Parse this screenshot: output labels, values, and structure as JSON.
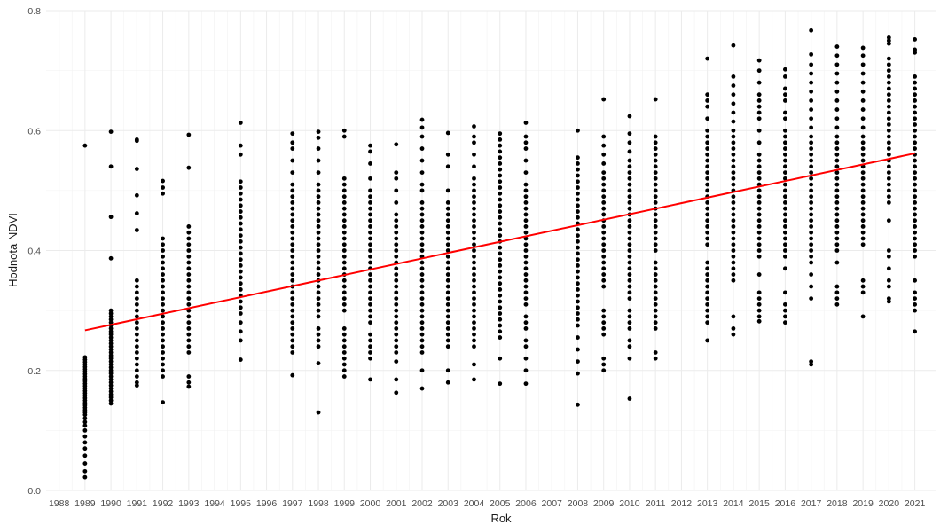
{
  "chart_data": {
    "type": "scatter",
    "title": "",
    "xlabel": "Rok",
    "ylabel": "Hodnota NDVI",
    "xlim": [
      1987.5,
      2021.8
    ],
    "ylim": [
      0.0,
      0.8
    ],
    "x_ticks": [
      1988,
      1989,
      1990,
      1991,
      1992,
      1993,
      1994,
      1995,
      1996,
      1997,
      1998,
      1999,
      2000,
      2001,
      2002,
      2003,
      2004,
      2005,
      2006,
      2007,
      2008,
      2009,
      2010,
      2011,
      2012,
      2013,
      2014,
      2015,
      2016,
      2017,
      2018,
      2019,
      2020,
      2021
    ],
    "y_ticks": [
      0.0,
      0.2,
      0.4,
      0.6,
      0.8
    ],
    "y_tick_labels": [
      "0.0",
      "0.2",
      "0.4",
      "0.6",
      "0.8"
    ],
    "grid": true,
    "legend": "none",
    "point_color": "#000000",
    "trend_color": "#ff0000",
    "trend_line": {
      "x": [
        1989,
        2021
      ],
      "y": [
        0.267,
        0.562
      ]
    },
    "series": [
      {
        "x": 1989,
        "values": [
          0.575,
          0.222,
          0.218,
          0.214,
          0.21,
          0.206,
          0.202,
          0.198,
          0.194,
          0.19,
          0.186,
          0.182,
          0.178,
          0.174,
          0.17,
          0.166,
          0.162,
          0.158,
          0.154,
          0.15,
          0.146,
          0.142,
          0.138,
          0.134,
          0.13,
          0.126,
          0.12,
          0.114,
          0.108,
          0.1,
          0.09,
          0.08,
          0.07,
          0.058,
          0.045,
          0.032,
          0.022
        ]
      },
      {
        "x": 1990,
        "values": [
          0.598,
          0.54,
          0.456,
          0.387,
          0.3,
          0.295,
          0.29,
          0.285,
          0.28,
          0.275,
          0.27,
          0.265,
          0.26,
          0.255,
          0.25,
          0.245,
          0.24,
          0.235,
          0.23,
          0.225,
          0.22,
          0.215,
          0.21,
          0.205,
          0.2,
          0.195,
          0.19,
          0.185,
          0.18,
          0.175,
          0.17,
          0.165,
          0.16,
          0.155,
          0.15,
          0.145
        ]
      },
      {
        "x": 1991,
        "values": [
          0.585,
          0.583,
          0.536,
          0.492,
          0.462,
          0.434,
          0.35,
          0.34,
          0.33,
          0.32,
          0.31,
          0.3,
          0.29,
          0.28,
          0.27,
          0.26,
          0.25,
          0.24,
          0.23,
          0.22,
          0.21,
          0.2,
          0.19,
          0.18,
          0.175
        ]
      },
      {
        "x": 1992,
        "values": [
          0.516,
          0.505,
          0.495,
          0.42,
          0.41,
          0.4,
          0.39,
          0.38,
          0.37,
          0.36,
          0.35,
          0.34,
          0.33,
          0.32,
          0.31,
          0.3,
          0.29,
          0.28,
          0.27,
          0.26,
          0.25,
          0.24,
          0.23,
          0.22,
          0.21,
          0.2,
          0.19,
          0.147
        ]
      },
      {
        "x": 1993,
        "values": [
          0.593,
          0.538,
          0.44,
          0.43,
          0.42,
          0.41,
          0.4,
          0.39,
          0.38,
          0.37,
          0.36,
          0.35,
          0.34,
          0.33,
          0.32,
          0.31,
          0.3,
          0.29,
          0.28,
          0.27,
          0.26,
          0.25,
          0.24,
          0.23,
          0.19,
          0.18,
          0.173
        ]
      },
      {
        "x": 1995,
        "values": [
          0.613,
          0.575,
          0.56,
          0.515,
          0.505,
          0.495,
          0.485,
          0.475,
          0.465,
          0.455,
          0.445,
          0.435,
          0.425,
          0.415,
          0.405,
          0.395,
          0.385,
          0.375,
          0.365,
          0.355,
          0.345,
          0.335,
          0.325,
          0.315,
          0.305,
          0.295,
          0.28,
          0.265,
          0.25,
          0.218
        ]
      },
      {
        "x": 1997,
        "values": [
          0.595,
          0.58,
          0.57,
          0.55,
          0.53,
          0.51,
          0.5,
          0.49,
          0.48,
          0.47,
          0.46,
          0.45,
          0.44,
          0.43,
          0.42,
          0.41,
          0.4,
          0.39,
          0.38,
          0.37,
          0.36,
          0.35,
          0.34,
          0.33,
          0.32,
          0.31,
          0.3,
          0.29,
          0.28,
          0.27,
          0.26,
          0.25,
          0.24,
          0.23,
          0.192
        ]
      },
      {
        "x": 1998,
        "values": [
          0.598,
          0.588,
          0.57,
          0.55,
          0.53,
          0.51,
          0.5,
          0.49,
          0.48,
          0.47,
          0.46,
          0.45,
          0.44,
          0.43,
          0.42,
          0.41,
          0.4,
          0.39,
          0.38,
          0.37,
          0.36,
          0.35,
          0.34,
          0.33,
          0.32,
          0.31,
          0.3,
          0.29,
          0.27,
          0.26,
          0.25,
          0.24,
          0.212,
          0.13
        ]
      },
      {
        "x": 1999,
        "values": [
          0.6,
          0.59,
          0.52,
          0.51,
          0.5,
          0.49,
          0.48,
          0.47,
          0.46,
          0.45,
          0.44,
          0.43,
          0.42,
          0.41,
          0.4,
          0.39,
          0.38,
          0.37,
          0.36,
          0.35,
          0.34,
          0.33,
          0.32,
          0.31,
          0.3,
          0.27,
          0.26,
          0.25,
          0.24,
          0.23,
          0.22,
          0.21,
          0.2,
          0.19
        ]
      },
      {
        "x": 2000,
        "values": [
          0.575,
          0.565,
          0.545,
          0.52,
          0.5,
          0.49,
          0.48,
          0.47,
          0.46,
          0.45,
          0.44,
          0.43,
          0.42,
          0.41,
          0.4,
          0.39,
          0.38,
          0.37,
          0.36,
          0.35,
          0.34,
          0.33,
          0.32,
          0.31,
          0.3,
          0.29,
          0.28,
          0.26,
          0.25,
          0.24,
          0.23,
          0.22,
          0.185
        ]
      },
      {
        "x": 2001,
        "values": [
          0.577,
          0.53,
          0.52,
          0.5,
          0.48,
          0.46,
          0.45,
          0.44,
          0.43,
          0.42,
          0.41,
          0.4,
          0.39,
          0.38,
          0.37,
          0.36,
          0.35,
          0.34,
          0.33,
          0.32,
          0.31,
          0.3,
          0.29,
          0.28,
          0.27,
          0.26,
          0.25,
          0.24,
          0.23,
          0.215,
          0.185,
          0.163
        ]
      },
      {
        "x": 2002,
        "values": [
          0.618,
          0.605,
          0.59,
          0.57,
          0.55,
          0.53,
          0.51,
          0.5,
          0.48,
          0.47,
          0.46,
          0.45,
          0.44,
          0.43,
          0.42,
          0.41,
          0.4,
          0.39,
          0.38,
          0.37,
          0.36,
          0.35,
          0.34,
          0.33,
          0.32,
          0.31,
          0.3,
          0.29,
          0.28,
          0.27,
          0.26,
          0.25,
          0.24,
          0.23,
          0.2,
          0.17
        ]
      },
      {
        "x": 2003,
        "values": [
          0.596,
          0.56,
          0.54,
          0.5,
          0.48,
          0.47,
          0.46,
          0.45,
          0.44,
          0.43,
          0.42,
          0.41,
          0.4,
          0.39,
          0.38,
          0.37,
          0.36,
          0.35,
          0.34,
          0.33,
          0.32,
          0.31,
          0.3,
          0.29,
          0.28,
          0.27,
          0.26,
          0.25,
          0.24,
          0.2,
          0.18
        ]
      },
      {
        "x": 2004,
        "values": [
          0.607,
          0.59,
          0.58,
          0.56,
          0.54,
          0.52,
          0.51,
          0.5,
          0.49,
          0.48,
          0.47,
          0.46,
          0.45,
          0.44,
          0.43,
          0.42,
          0.41,
          0.4,
          0.39,
          0.38,
          0.37,
          0.36,
          0.35,
          0.34,
          0.33,
          0.32,
          0.31,
          0.3,
          0.29,
          0.28,
          0.27,
          0.26,
          0.25,
          0.24,
          0.21,
          0.185
        ]
      },
      {
        "x": 2005,
        "values": [
          0.595,
          0.585,
          0.575,
          0.565,
          0.555,
          0.545,
          0.535,
          0.525,
          0.515,
          0.505,
          0.495,
          0.485,
          0.475,
          0.465,
          0.455,
          0.445,
          0.435,
          0.425,
          0.415,
          0.405,
          0.395,
          0.385,
          0.375,
          0.365,
          0.355,
          0.345,
          0.335,
          0.325,
          0.315,
          0.305,
          0.295,
          0.285,
          0.275,
          0.265,
          0.255,
          0.22,
          0.178
        ]
      },
      {
        "x": 2006,
        "values": [
          0.613,
          0.59,
          0.58,
          0.57,
          0.55,
          0.53,
          0.51,
          0.5,
          0.49,
          0.48,
          0.47,
          0.46,
          0.45,
          0.44,
          0.43,
          0.42,
          0.41,
          0.4,
          0.39,
          0.38,
          0.37,
          0.36,
          0.35,
          0.34,
          0.33,
          0.32,
          0.31,
          0.29,
          0.28,
          0.27,
          0.25,
          0.24,
          0.22,
          0.2,
          0.178
        ]
      },
      {
        "x": 2008,
        "values": [
          0.6,
          0.555,
          0.545,
          0.535,
          0.525,
          0.515,
          0.505,
          0.495,
          0.485,
          0.475,
          0.465,
          0.455,
          0.445,
          0.435,
          0.425,
          0.415,
          0.405,
          0.395,
          0.385,
          0.375,
          0.365,
          0.355,
          0.345,
          0.335,
          0.325,
          0.315,
          0.305,
          0.295,
          0.285,
          0.275,
          0.255,
          0.235,
          0.215,
          0.195,
          0.143
        ]
      },
      {
        "x": 2009,
        "values": [
          0.652,
          0.59,
          0.575,
          0.56,
          0.545,
          0.53,
          0.52,
          0.51,
          0.5,
          0.49,
          0.48,
          0.47,
          0.46,
          0.45,
          0.44,
          0.43,
          0.42,
          0.41,
          0.4,
          0.39,
          0.38,
          0.37,
          0.36,
          0.35,
          0.34,
          0.3,
          0.29,
          0.28,
          0.27,
          0.26,
          0.22,
          0.21,
          0.2
        ]
      },
      {
        "x": 2010,
        "values": [
          0.624,
          0.595,
          0.58,
          0.565,
          0.55,
          0.54,
          0.53,
          0.52,
          0.51,
          0.5,
          0.49,
          0.48,
          0.47,
          0.46,
          0.45,
          0.44,
          0.43,
          0.42,
          0.41,
          0.4,
          0.39,
          0.38,
          0.37,
          0.36,
          0.35,
          0.34,
          0.33,
          0.32,
          0.3,
          0.29,
          0.28,
          0.27,
          0.25,
          0.24,
          0.22,
          0.153
        ]
      },
      {
        "x": 2011,
        "values": [
          0.652,
          0.59,
          0.58,
          0.57,
          0.56,
          0.55,
          0.54,
          0.53,
          0.52,
          0.51,
          0.5,
          0.49,
          0.48,
          0.47,
          0.46,
          0.45,
          0.44,
          0.43,
          0.42,
          0.41,
          0.4,
          0.38,
          0.37,
          0.36,
          0.35,
          0.34,
          0.33,
          0.32,
          0.31,
          0.3,
          0.29,
          0.28,
          0.27,
          0.23,
          0.22
        ]
      },
      {
        "x": 2013,
        "values": [
          0.72,
          0.66,
          0.65,
          0.64,
          0.62,
          0.6,
          0.59,
          0.58,
          0.57,
          0.56,
          0.55,
          0.54,
          0.53,
          0.52,
          0.51,
          0.5,
          0.49,
          0.48,
          0.47,
          0.46,
          0.45,
          0.44,
          0.43,
          0.42,
          0.41,
          0.38,
          0.37,
          0.36,
          0.35,
          0.34,
          0.33,
          0.32,
          0.31,
          0.3,
          0.29,
          0.28,
          0.25
        ]
      },
      {
        "x": 2014,
        "values": [
          0.742,
          0.69,
          0.675,
          0.66,
          0.645,
          0.63,
          0.615,
          0.6,
          0.59,
          0.58,
          0.57,
          0.56,
          0.55,
          0.54,
          0.53,
          0.52,
          0.51,
          0.5,
          0.49,
          0.48,
          0.47,
          0.46,
          0.45,
          0.44,
          0.43,
          0.42,
          0.41,
          0.4,
          0.39,
          0.38,
          0.37,
          0.36,
          0.35,
          0.29,
          0.27,
          0.26
        ]
      },
      {
        "x": 2015,
        "values": [
          0.717,
          0.7,
          0.68,
          0.66,
          0.65,
          0.64,
          0.63,
          0.62,
          0.6,
          0.58,
          0.56,
          0.55,
          0.54,
          0.53,
          0.52,
          0.51,
          0.5,
          0.49,
          0.48,
          0.47,
          0.46,
          0.45,
          0.44,
          0.43,
          0.42,
          0.41,
          0.4,
          0.39,
          0.36,
          0.33,
          0.32,
          0.31,
          0.3,
          0.29,
          0.282
        ]
      },
      {
        "x": 2016,
        "values": [
          0.702,
          0.69,
          0.67,
          0.66,
          0.65,
          0.63,
          0.62,
          0.6,
          0.59,
          0.58,
          0.57,
          0.56,
          0.55,
          0.54,
          0.53,
          0.52,
          0.51,
          0.5,
          0.49,
          0.48,
          0.47,
          0.46,
          0.45,
          0.44,
          0.43,
          0.42,
          0.41,
          0.4,
          0.39,
          0.37,
          0.33,
          0.31,
          0.3,
          0.29,
          0.28
        ]
      },
      {
        "x": 2017,
        "values": [
          0.767,
          0.727,
          0.71,
          0.695,
          0.68,
          0.665,
          0.65,
          0.635,
          0.62,
          0.605,
          0.59,
          0.58,
          0.57,
          0.56,
          0.55,
          0.54,
          0.53,
          0.52,
          0.51,
          0.5,
          0.49,
          0.48,
          0.47,
          0.46,
          0.45,
          0.44,
          0.43,
          0.42,
          0.41,
          0.4,
          0.39,
          0.38,
          0.36,
          0.34,
          0.32,
          0.215,
          0.21
        ]
      },
      {
        "x": 2018,
        "values": [
          0.74,
          0.725,
          0.71,
          0.695,
          0.68,
          0.665,
          0.65,
          0.635,
          0.62,
          0.605,
          0.59,
          0.58,
          0.57,
          0.56,
          0.55,
          0.54,
          0.53,
          0.52,
          0.51,
          0.5,
          0.49,
          0.48,
          0.47,
          0.46,
          0.45,
          0.44,
          0.43,
          0.42,
          0.41,
          0.4,
          0.38,
          0.34,
          0.33,
          0.32,
          0.31
        ]
      },
      {
        "x": 2019,
        "values": [
          0.738,
          0.725,
          0.71,
          0.695,
          0.68,
          0.665,
          0.65,
          0.635,
          0.62,
          0.605,
          0.59,
          0.58,
          0.57,
          0.56,
          0.55,
          0.54,
          0.53,
          0.52,
          0.51,
          0.5,
          0.49,
          0.48,
          0.47,
          0.46,
          0.45,
          0.44,
          0.43,
          0.42,
          0.41,
          0.35,
          0.34,
          0.33,
          0.29
        ]
      },
      {
        "x": 2020,
        "values": [
          0.755,
          0.75,
          0.745,
          0.72,
          0.71,
          0.7,
          0.69,
          0.68,
          0.67,
          0.66,
          0.65,
          0.64,
          0.63,
          0.62,
          0.61,
          0.6,
          0.59,
          0.58,
          0.57,
          0.56,
          0.55,
          0.54,
          0.53,
          0.52,
          0.51,
          0.5,
          0.49,
          0.48,
          0.45,
          0.4,
          0.39,
          0.37,
          0.35,
          0.34,
          0.32,
          0.315
        ]
      },
      {
        "x": 2021,
        "values": [
          0.752,
          0.735,
          0.73,
          0.69,
          0.68,
          0.67,
          0.66,
          0.65,
          0.64,
          0.63,
          0.62,
          0.61,
          0.6,
          0.59,
          0.58,
          0.57,
          0.56,
          0.55,
          0.54,
          0.53,
          0.52,
          0.51,
          0.5,
          0.49,
          0.48,
          0.47,
          0.46,
          0.45,
          0.44,
          0.43,
          0.42,
          0.41,
          0.4,
          0.39,
          0.35,
          0.33,
          0.32,
          0.31,
          0.3,
          0.265
        ]
      }
    ]
  }
}
